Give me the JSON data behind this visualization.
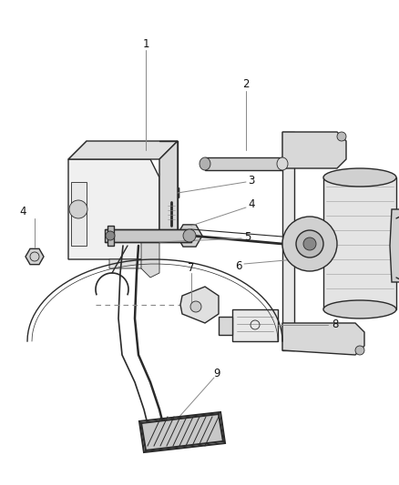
{
  "background_color": "#ffffff",
  "line_color": "#2a2a2a",
  "label_color": "#111111",
  "callout_line_color": "#888888",
  "fig_width": 4.39,
  "fig_height": 5.33,
  "dpi": 100
}
